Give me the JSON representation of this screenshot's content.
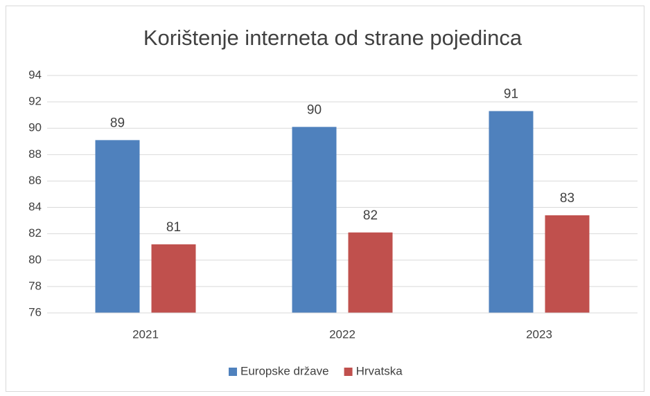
{
  "chart_data": {
    "type": "bar",
    "title": "Korištenje interneta od strane pojedinca",
    "categories": [
      "2021",
      "2022",
      "2023"
    ],
    "series": [
      {
        "name": "Europske države",
        "color": "#4f81bd",
        "values": [
          89.1,
          90.1,
          91.3
        ],
        "value_labels": [
          "89",
          "90",
          "91"
        ]
      },
      {
        "name": "Hrvatska",
        "color": "#c0504d",
        "values": [
          81.2,
          82.1,
          83.4
        ],
        "value_labels": [
          "81",
          "82",
          "83"
        ]
      }
    ],
    "ylim": [
      76,
      94
    ],
    "yticks": [
      76,
      78,
      80,
      82,
      84,
      86,
      88,
      90,
      92,
      94
    ],
    "grid": true,
    "legend": "bottom"
  }
}
